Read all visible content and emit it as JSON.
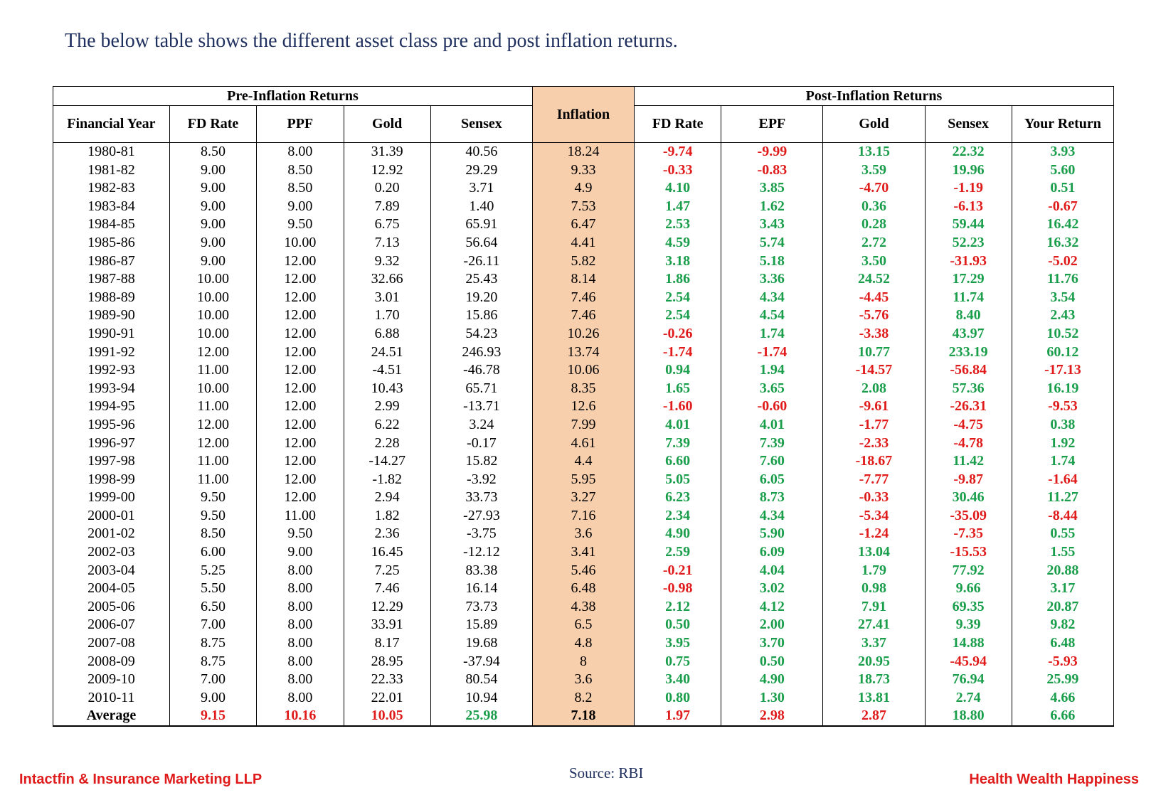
{
  "intro": "The below table shows the different asset class pre and post inflation returns.",
  "headers": {
    "pre_group": "Pre-Inflation Returns",
    "post_group": "Post-Inflation Returns",
    "financial_year": "Financial Year",
    "fd_rate": "FD Rate",
    "ppf": "PPF",
    "gold": "Gold",
    "sensex": "Sensex",
    "inflation": "Inflation",
    "post_fd_rate": "FD Rate",
    "epf": "EPF",
    "post_gold": "Gold",
    "post_sensex": "Sensex",
    "your_return": "Your Return"
  },
  "rows": [
    [
      "1980-81",
      "8.50",
      "8.00",
      "31.39",
      "40.56",
      "18.24",
      "-9.74",
      "-9.99",
      "13.15",
      "22.32",
      "3.93"
    ],
    [
      "1981-82",
      "9.00",
      "8.50",
      "12.92",
      "29.29",
      "9.33",
      "-0.33",
      "-0.83",
      "3.59",
      "19.96",
      "5.60"
    ],
    [
      "1982-83",
      "9.00",
      "8.50",
      "0.20",
      "3.71",
      "4.9",
      "4.10",
      "3.85",
      "-4.70",
      "-1.19",
      "0.51"
    ],
    [
      "1983-84",
      "9.00",
      "9.00",
      "7.89",
      "1.40",
      "7.53",
      "1.47",
      "1.62",
      "0.36",
      "-6.13",
      "-0.67"
    ],
    [
      "1984-85",
      "9.00",
      "9.50",
      "6.75",
      "65.91",
      "6.47",
      "2.53",
      "3.43",
      "0.28",
      "59.44",
      "16.42"
    ],
    [
      "1985-86",
      "9.00",
      "10.00",
      "7.13",
      "56.64",
      "4.41",
      "4.59",
      "5.74",
      "2.72",
      "52.23",
      "16.32"
    ],
    [
      "1986-87",
      "9.00",
      "12.00",
      "9.32",
      "-26.11",
      "5.82",
      "3.18",
      "5.18",
      "3.50",
      "-31.93",
      "-5.02"
    ],
    [
      "1987-88",
      "10.00",
      "12.00",
      "32.66",
      "25.43",
      "8.14",
      "1.86",
      "3.36",
      "24.52",
      "17.29",
      "11.76"
    ],
    [
      "1988-89",
      "10.00",
      "12.00",
      "3.01",
      "19.20",
      "7.46",
      "2.54",
      "4.34",
      "-4.45",
      "11.74",
      "3.54"
    ],
    [
      "1989-90",
      "10.00",
      "12.00",
      "1.70",
      "15.86",
      "7.46",
      "2.54",
      "4.54",
      "-5.76",
      "8.40",
      "2.43"
    ],
    [
      "1990-91",
      "10.00",
      "12.00",
      "6.88",
      "54.23",
      "10.26",
      "-0.26",
      "1.74",
      "-3.38",
      "43.97",
      "10.52"
    ],
    [
      "1991-92",
      "12.00",
      "12.00",
      "24.51",
      "246.93",
      "13.74",
      "-1.74",
      "-1.74",
      "10.77",
      "233.19",
      "60.12"
    ],
    [
      "1992-93",
      "11.00",
      "12.00",
      "-4.51",
      "-46.78",
      "10.06",
      "0.94",
      "1.94",
      "-14.57",
      "-56.84",
      "-17.13"
    ],
    [
      "1993-94",
      "10.00",
      "12.00",
      "10.43",
      "65.71",
      "8.35",
      "1.65",
      "3.65",
      "2.08",
      "57.36",
      "16.19"
    ],
    [
      "1994-95",
      "11.00",
      "12.00",
      "2.99",
      "-13.71",
      "12.6",
      "-1.60",
      "-0.60",
      "-9.61",
      "-26.31",
      "-9.53"
    ],
    [
      "1995-96",
      "12.00",
      "12.00",
      "6.22",
      "3.24",
      "7.99",
      "4.01",
      "4.01",
      "-1.77",
      "-4.75",
      "0.38"
    ],
    [
      "1996-97",
      "12.00",
      "12.00",
      "2.28",
      "-0.17",
      "4.61",
      "7.39",
      "7.39",
      "-2.33",
      "-4.78",
      "1.92"
    ],
    [
      "1997-98",
      "11.00",
      "12.00",
      "-14.27",
      "15.82",
      "4.4",
      "6.60",
      "7.60",
      "-18.67",
      "11.42",
      "1.74"
    ],
    [
      "1998-99",
      "11.00",
      "12.00",
      "-1.82",
      "-3.92",
      "5.95",
      "5.05",
      "6.05",
      "-7.77",
      "-9.87",
      "-1.64"
    ],
    [
      "1999-00",
      "9.50",
      "12.00",
      "2.94",
      "33.73",
      "3.27",
      "6.23",
      "8.73",
      "-0.33",
      "30.46",
      "11.27"
    ],
    [
      "2000-01",
      "9.50",
      "11.00",
      "1.82",
      "-27.93",
      "7.16",
      "2.34",
      "4.34",
      "-5.34",
      "-35.09",
      "-8.44"
    ],
    [
      "2001-02",
      "8.50",
      "9.50",
      "2.36",
      "-3.75",
      "3.6",
      "4.90",
      "5.90",
      "-1.24",
      "-7.35",
      "0.55"
    ],
    [
      "2002-03",
      "6.00",
      "9.00",
      "16.45",
      "-12.12",
      "3.41",
      "2.59",
      "6.09",
      "13.04",
      "-15.53",
      "1.55"
    ],
    [
      "2003-04",
      "5.25",
      "8.00",
      "7.25",
      "83.38",
      "5.46",
      "-0.21",
      "4.04",
      "1.79",
      "77.92",
      "20.88"
    ],
    [
      "2004-05",
      "5.50",
      "8.00",
      "7.46",
      "16.14",
      "6.48",
      "-0.98",
      "3.02",
      "0.98",
      "9.66",
      "3.17"
    ],
    [
      "2005-06",
      "6.50",
      "8.00",
      "12.29",
      "73.73",
      "4.38",
      "2.12",
      "4.12",
      "7.91",
      "69.35",
      "20.87"
    ],
    [
      "2006-07",
      "7.00",
      "8.00",
      "33.91",
      "15.89",
      "6.5",
      "0.50",
      "2.00",
      "27.41",
      "9.39",
      "9.82"
    ],
    [
      "2007-08",
      "8.75",
      "8.00",
      "8.17",
      "19.68",
      "4.8",
      "3.95",
      "3.70",
      "3.37",
      "14.88",
      "6.48"
    ],
    [
      "2008-09",
      "8.75",
      "8.00",
      "28.95",
      "-37.94",
      "8",
      "0.75",
      "0.50",
      "20.95",
      "-45.94",
      "-5.93"
    ],
    [
      "2009-10",
      "7.00",
      "8.00",
      "22.33",
      "80.54",
      "3.6",
      "3.40",
      "4.90",
      "18.73",
      "76.94",
      "25.99"
    ],
    [
      "2010-11",
      "9.00",
      "8.00",
      "22.01",
      "10.94",
      "8.2",
      "0.80",
      "1.30",
      "13.81",
      "2.74",
      "4.66"
    ]
  ],
  "average": [
    "Average",
    "9.15",
    "10.16",
    "10.05",
    "25.98",
    "7.18",
    "1.97",
    "2.98",
    "2.87",
    "18.80",
    "6.66"
  ],
  "average_colors": [
    "black",
    "red",
    "red",
    "red",
    "green",
    "black",
    "red",
    "red",
    "red",
    "green",
    "green"
  ],
  "colors": {
    "positive": "#1a9e4b",
    "negative": "#e01b1b",
    "inflation_bg": "#f8cfad"
  },
  "source": "Source: RBI",
  "footer": {
    "left": "Intactfin & Insurance Marketing LLP",
    "right": "Health Wealth Happiness"
  }
}
